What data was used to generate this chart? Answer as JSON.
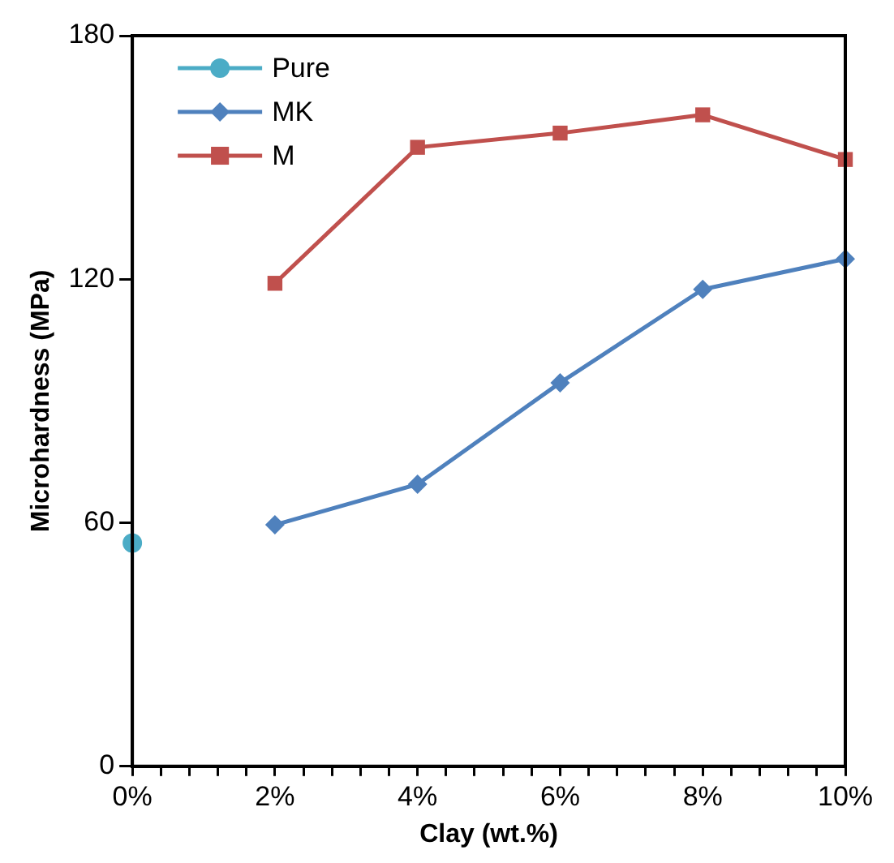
{
  "chart_data": {
    "type": "line",
    "xlabel": "Clay (wt.%)",
    "ylabel": "Microhardness (MPa)",
    "xlim": [
      0,
      10
    ],
    "xticks": [
      {
        "value": 0,
        "label": "0%"
      },
      {
        "value": 0.4,
        "label": null
      },
      {
        "value": 0.8,
        "label": null
      },
      {
        "value": 1.2,
        "label": null
      },
      {
        "value": 1.6,
        "label": null
      },
      {
        "value": 2,
        "label": "2%"
      },
      {
        "value": 2.4,
        "label": null
      },
      {
        "value": 2.8,
        "label": null
      },
      {
        "value": 3.2,
        "label": null
      },
      {
        "value": 3.6,
        "label": null
      },
      {
        "value": 4,
        "label": "4%"
      },
      {
        "value": 4.4,
        "label": null
      },
      {
        "value": 4.8,
        "label": null
      },
      {
        "value": 5.2,
        "label": null
      },
      {
        "value": 5.6,
        "label": null
      },
      {
        "value": 6,
        "label": "6%"
      },
      {
        "value": 6.4,
        "label": null
      },
      {
        "value": 6.8,
        "label": null
      },
      {
        "value": 7.2,
        "label": null
      },
      {
        "value": 7.6,
        "label": null
      },
      {
        "value": 8,
        "label": "8%"
      },
      {
        "value": 8.4,
        "label": null
      },
      {
        "value": 8.8,
        "label": null
      },
      {
        "value": 9.2,
        "label": null
      },
      {
        "value": 9.6,
        "label": null
      },
      {
        "value": 10,
        "label": "10%"
      }
    ],
    "ylim": [
      0,
      180
    ],
    "yticks": [
      0,
      60,
      120,
      180
    ],
    "grid": false,
    "legend": "top left",
    "line_style": "solid",
    "series": [
      {
        "name": "Pure",
        "color": "#4bacc6",
        "marker": "circle",
        "x": [
          0
        ],
        "values": [
          55
        ]
      },
      {
        "name": "MK",
        "color": "#4f81bd",
        "marker": "diamond",
        "x": [
          2,
          4,
          6,
          8,
          10
        ],
        "values": [
          59.5,
          69.5,
          94.5,
          117.5,
          125
        ]
      },
      {
        "name": "M",
        "color": "#c0504d",
        "marker": "square",
        "x": [
          2,
          4,
          6,
          8,
          10
        ],
        "values": [
          119,
          152.5,
          156,
          160.5,
          149.5
        ]
      }
    ]
  }
}
